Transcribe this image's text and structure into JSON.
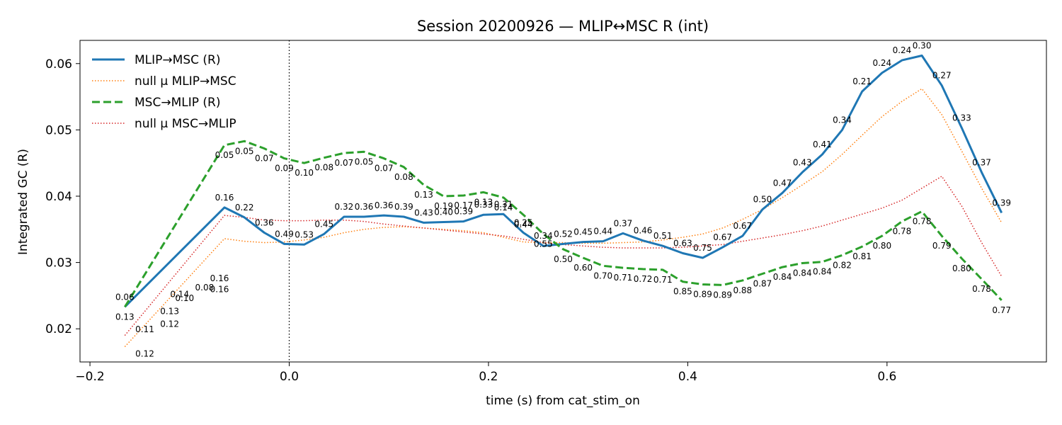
{
  "chart_data": {
    "type": "line",
    "title": "Session 20200926 — MLIP↔MSC R (int)",
    "xlabel": "time (s) from cat_stim_on",
    "ylabel": "Integrated GC (R)",
    "xlim": [
      -0.21,
      0.76
    ],
    "ylim": [
      0.015,
      0.0635
    ],
    "xticks": [
      -0.2,
      0.0,
      0.2,
      0.4,
      0.6
    ],
    "xtick_labels": [
      "−0.2",
      "0.0",
      "0.2",
      "0.4",
      "0.6"
    ],
    "yticks": [
      0.02,
      0.03,
      0.04,
      0.05,
      0.06
    ],
    "ytick_labels": [
      "0.02",
      "0.03",
      "0.04",
      "0.05",
      "0.06"
    ],
    "vline_x": 0.0,
    "legend_position": "upper-left",
    "x": [
      -0.165,
      -0.065,
      -0.045,
      -0.025,
      -0.005,
      0.015,
      0.035,
      0.055,
      0.075,
      0.095,
      0.115,
      0.135,
      0.155,
      0.175,
      0.195,
      0.215,
      0.235,
      0.255,
      0.275,
      0.295,
      0.315,
      0.335,
      0.355,
      0.375,
      0.395,
      0.415,
      0.435,
      0.455,
      0.475,
      0.495,
      0.515,
      0.535,
      0.555,
      0.575,
      0.595,
      0.615,
      0.635,
      0.655,
      0.675,
      0.695,
      0.715
    ],
    "series": [
      {
        "name": "MLIP→MSC (R)",
        "color": "#1f77b4",
        "style": "solid",
        "values": [
          0.0233,
          0.0383,
          0.0368,
          0.0345,
          0.0328,
          0.0327,
          0.0343,
          0.0369,
          0.0369,
          0.0371,
          0.0369,
          0.036,
          0.0361,
          0.0362,
          0.0372,
          0.0373,
          0.0345,
          0.0325,
          0.0328,
          0.0331,
          0.0332,
          0.0344,
          0.0333,
          0.0325,
          0.0314,
          0.0307,
          0.0323,
          0.034,
          0.038,
          0.0405,
          0.0436,
          0.0463,
          0.05,
          0.0558,
          0.0586,
          0.0605,
          0.0612,
          0.0567,
          0.0503,
          0.0436,
          0.0375
        ],
        "labels": [
          "0.06",
          "0.16",
          "0.22",
          "0.36",
          "0.49",
          "0.53",
          "0.45",
          "0.32",
          "0.36",
          "0.36",
          "0.39",
          "0.43",
          "0.40",
          "0.39",
          "0.33",
          "0.31",
          "0.25",
          "0.34",
          "0.52",
          "0.45",
          "0.44",
          "0.37",
          "0.46",
          "0.51",
          "0.63",
          "0.75",
          "0.67",
          "0.67",
          "0.50",
          "0.47",
          "0.43",
          "0.41",
          "0.34",
          "0.21",
          "0.24",
          "0.24",
          "0.30",
          "0.27",
          "0.33",
          "0.37",
          "0.39"
        ]
      },
      {
        "name": "null μ MLIP→MSC",
        "color": "#ff7f0e",
        "style": "dotted",
        "values": [
          0.0173,
          0.0336,
          0.0332,
          0.033,
          0.0331,
          0.0334,
          0.0338,
          0.0345,
          0.035,
          0.0353,
          0.0354,
          0.0352,
          0.035,
          0.0348,
          0.0345,
          0.0338,
          0.0331,
          0.033,
          0.033,
          0.0329,
          0.0329,
          0.033,
          0.0331,
          0.0334,
          0.0338,
          0.0343,
          0.0352,
          0.0365,
          0.038,
          0.0398,
          0.0417,
          0.0437,
          0.0463,
          0.0492,
          0.052,
          0.0543,
          0.0562,
          0.0523,
          0.0468,
          0.0412,
          0.036
        ],
        "labels": []
      },
      {
        "name": "MSC→MLIP (R)",
        "color": "#2ca02c",
        "style": "dashed",
        "values": [
          0.0233,
          0.0477,
          0.0483,
          0.0472,
          0.0457,
          0.045,
          0.0458,
          0.0465,
          0.0467,
          0.0457,
          0.0444,
          0.0417,
          0.04,
          0.0401,
          0.0406,
          0.0398,
          0.0372,
          0.0343,
          0.032,
          0.0307,
          0.0295,
          0.0292,
          0.029,
          0.0289,
          0.0271,
          0.0267,
          0.0266,
          0.0273,
          0.0283,
          0.0293,
          0.0299,
          0.0301,
          0.0311,
          0.0324,
          0.034,
          0.0362,
          0.0377,
          0.034,
          0.0306,
          0.0275,
          0.0243
        ],
        "labels": [
          "0.13",
          "0.05",
          "0.05",
          "0.07",
          "0.09",
          "0.10",
          "0.08",
          "0.07",
          "0.05",
          "0.07",
          "0.08",
          "0.13",
          "0.19",
          "0.17",
          "0.13",
          "0.14",
          "0.44",
          "0.55",
          "0.50",
          "0.60",
          "0.70",
          "0.71",
          "0.72",
          "0.71",
          "0.85",
          "0.89",
          "0.89",
          "0.88",
          "0.87",
          "0.84",
          "0.84",
          "0.84",
          "0.82",
          "0.81",
          "0.80",
          "0.78",
          "0.78",
          "0.79",
          "0.80",
          "0.78",
          "0.77"
        ]
      },
      {
        "name": "null μ MSC→MLIP",
        "color": "#d62728",
        "style": "dotted",
        "values": [
          0.019,
          0.0371,
          0.0368,
          0.0364,
          0.0363,
          0.0363,
          0.0364,
          0.0364,
          0.0362,
          0.0358,
          0.0355,
          0.0352,
          0.0349,
          0.0346,
          0.0343,
          0.034,
          0.0335,
          0.033,
          0.0327,
          0.0325,
          0.0323,
          0.0322,
          0.0322,
          0.0322,
          0.0323,
          0.0325,
          0.0327,
          0.0332,
          0.0337,
          0.0342,
          0.0348,
          0.0355,
          0.0364,
          0.0373,
          0.0382,
          0.0394,
          0.0412,
          0.043,
          0.0385,
          0.033,
          0.0279
        ],
        "labels": []
      }
    ],
    "extra_labels": [
      "0.12",
      "0.11",
      "0.13",
      "0.14",
      "0.16",
      "0.12",
      "0.16",
      "0.08",
      "0.10"
    ]
  }
}
